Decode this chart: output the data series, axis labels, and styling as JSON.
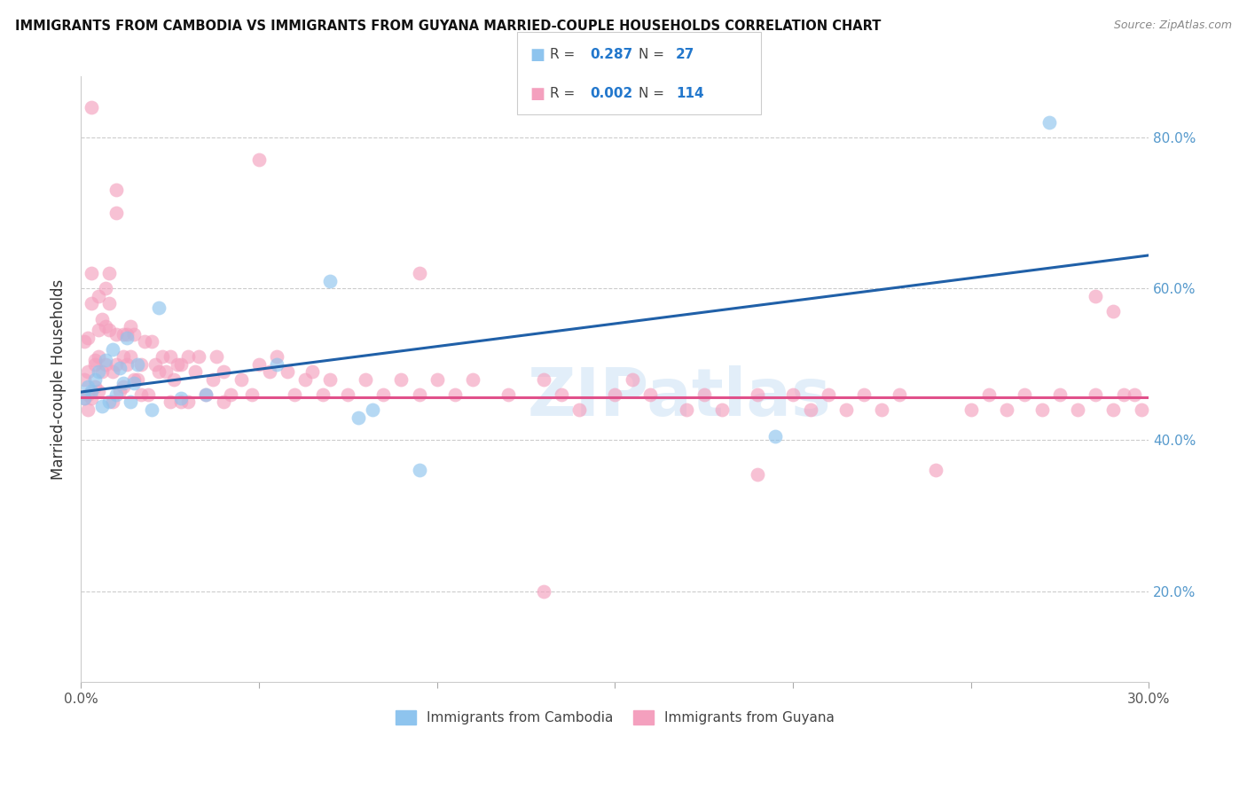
{
  "title": "IMMIGRANTS FROM CAMBODIA VS IMMIGRANTS FROM GUYANA MARRIED-COUPLE HOUSEHOLDS CORRELATION CHART",
  "source": "Source: ZipAtlas.com",
  "ylabel": "Married-couple Households",
  "xlim": [
    0.0,
    0.3
  ],
  "ylim": [
    0.08,
    0.88
  ],
  "xticks": [
    0.0,
    0.05,
    0.1,
    0.15,
    0.2,
    0.25,
    0.3
  ],
  "yticks": [
    0.2,
    0.4,
    0.6,
    0.8
  ],
  "ytick_right_labels": [
    "20.0%",
    "40.0%",
    "60.0%",
    "80.0%"
  ],
  "cambodia_color": "#8EC4EE",
  "guyana_color": "#F4A0BE",
  "cambodia_line_color": "#2060A8",
  "guyana_line_color": "#E0508A",
  "legend_R_cambodia": "0.287",
  "legend_N_cambodia": "27",
  "legend_R_guyana": "0.002",
  "legend_N_guyana": "114",
  "watermark": "ZIPatlas",
  "cam_x": [
    0.001,
    0.002,
    0.003,
    0.004,
    0.005,
    0.006,
    0.007,
    0.008,
    0.009,
    0.01,
    0.011,
    0.012,
    0.013,
    0.014,
    0.015,
    0.016,
    0.02,
    0.022,
    0.028,
    0.035,
    0.055,
    0.07,
    0.078,
    0.082,
    0.095,
    0.195,
    0.272
  ],
  "cam_y": [
    0.455,
    0.47,
    0.465,
    0.48,
    0.49,
    0.445,
    0.505,
    0.45,
    0.52,
    0.46,
    0.495,
    0.475,
    0.535,
    0.45,
    0.475,
    0.5,
    0.44,
    0.575,
    0.455,
    0.46,
    0.5,
    0.61,
    0.43,
    0.44,
    0.36,
    0.405,
    0.82
  ],
  "guy_x": [
    0.001,
    0.001,
    0.001,
    0.002,
    0.002,
    0.002,
    0.002,
    0.003,
    0.003,
    0.003,
    0.004,
    0.004,
    0.004,
    0.005,
    0.005,
    0.005,
    0.005,
    0.006,
    0.006,
    0.007,
    0.007,
    0.007,
    0.008,
    0.008,
    0.008,
    0.009,
    0.009,
    0.01,
    0.01,
    0.011,
    0.012,
    0.012,
    0.012,
    0.013,
    0.013,
    0.014,
    0.014,
    0.015,
    0.015,
    0.016,
    0.017,
    0.017,
    0.018,
    0.019,
    0.02,
    0.021,
    0.022,
    0.023,
    0.024,
    0.025,
    0.026,
    0.027,
    0.028,
    0.03,
    0.032,
    0.033,
    0.035,
    0.037,
    0.038,
    0.04,
    0.042,
    0.045,
    0.048,
    0.05,
    0.053,
    0.055,
    0.058,
    0.06,
    0.063,
    0.065,
    0.068,
    0.07,
    0.075,
    0.08,
    0.085,
    0.09,
    0.095,
    0.1,
    0.105,
    0.11,
    0.12,
    0.13,
    0.135,
    0.14,
    0.15,
    0.155,
    0.16,
    0.17,
    0.175,
    0.18,
    0.19,
    0.2,
    0.205,
    0.21,
    0.215,
    0.22,
    0.225,
    0.23,
    0.25,
    0.255,
    0.26,
    0.265,
    0.27,
    0.275,
    0.28,
    0.285,
    0.29,
    0.293,
    0.296,
    0.298,
    0.03,
    0.04,
    0.025,
    0.028
  ],
  "guy_y": [
    0.48,
    0.53,
    0.455,
    0.535,
    0.49,
    0.46,
    0.44,
    0.62,
    0.58,
    0.455,
    0.5,
    0.505,
    0.47,
    0.59,
    0.545,
    0.51,
    0.465,
    0.56,
    0.49,
    0.6,
    0.55,
    0.5,
    0.62,
    0.58,
    0.545,
    0.49,
    0.45,
    0.54,
    0.5,
    0.465,
    0.54,
    0.51,
    0.47,
    0.54,
    0.5,
    0.55,
    0.51,
    0.54,
    0.48,
    0.48,
    0.5,
    0.46,
    0.53,
    0.46,
    0.53,
    0.5,
    0.49,
    0.51,
    0.49,
    0.51,
    0.48,
    0.5,
    0.5,
    0.51,
    0.49,
    0.51,
    0.46,
    0.48,
    0.51,
    0.49,
    0.46,
    0.48,
    0.46,
    0.5,
    0.49,
    0.51,
    0.49,
    0.46,
    0.48,
    0.49,
    0.46,
    0.48,
    0.46,
    0.48,
    0.46,
    0.48,
    0.46,
    0.48,
    0.46,
    0.48,
    0.46,
    0.48,
    0.46,
    0.44,
    0.46,
    0.48,
    0.46,
    0.44,
    0.46,
    0.44,
    0.46,
    0.46,
    0.44,
    0.46,
    0.44,
    0.46,
    0.44,
    0.46,
    0.44,
    0.46,
    0.44,
    0.46,
    0.44,
    0.46,
    0.44,
    0.46,
    0.44,
    0.46,
    0.46,
    0.44,
    0.45,
    0.45,
    0.45,
    0.45
  ],
  "guy_x_outliers": [
    0.003,
    0.01,
    0.01,
    0.05,
    0.095,
    0.13,
    0.19,
    0.24,
    0.285,
    0.29
  ],
  "guy_y_outliers": [
    0.84,
    0.73,
    0.7,
    0.77,
    0.62,
    0.2,
    0.355,
    0.36,
    0.59,
    0.57
  ]
}
